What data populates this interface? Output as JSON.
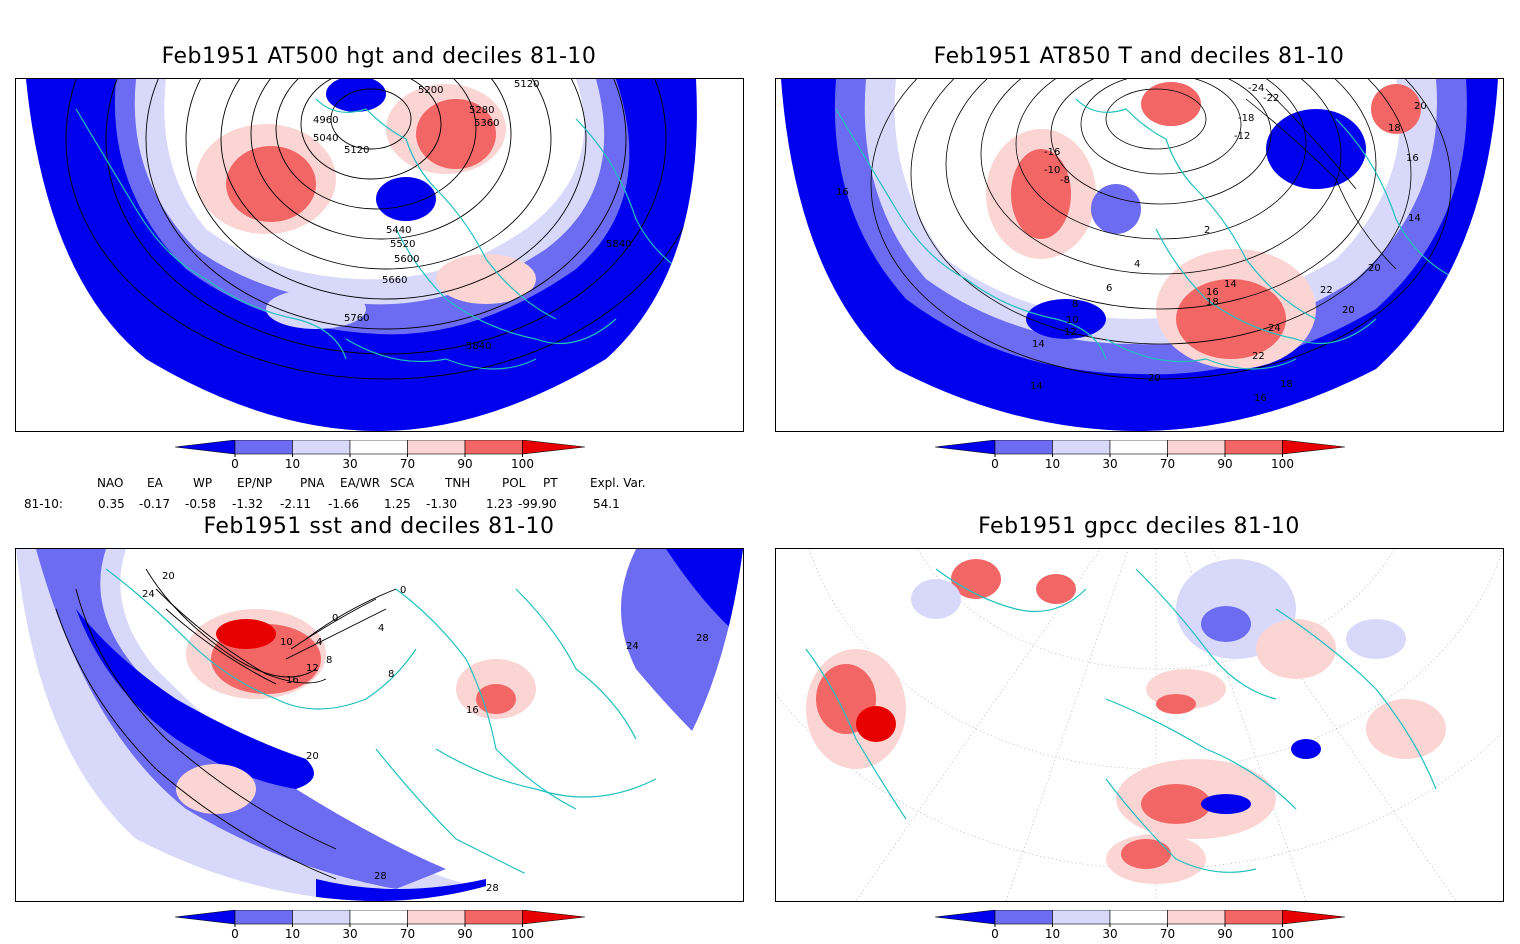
{
  "panels": [
    {
      "title": "Feb1951  AT500  hgt  and  deciles  81-10",
      "contour_labels": [
        "5120",
        "5200",
        "4960",
        "5280",
        "5040",
        "5360",
        "5120",
        "5440",
        "5520",
        "5600",
        "5660",
        "5840",
        "5760",
        "5840"
      ]
    },
    {
      "title": "Feb1951  AT850  T  and  deciles  81-10",
      "contour_labels": [
        "-24",
        "-22",
        "-18",
        "-16",
        "-12",
        "-10",
        "-8",
        "20",
        "18",
        "16",
        "16",
        "14",
        "2",
        "4",
        "6",
        "8",
        "10",
        "12",
        "14",
        "14",
        "16",
        "18",
        "14",
        "22",
        "20",
        "20",
        "24",
        "22",
        "20",
        "18",
        "16"
      ]
    },
    {
      "title": "Feb1951  sst  and  deciles  81-10",
      "contour_labels": [
        "24",
        "20",
        "0",
        "0",
        "4",
        "10",
        "4",
        "8",
        "12",
        "16",
        "8",
        "20",
        "16",
        "24",
        "28",
        "28",
        "28"
      ]
    },
    {
      "title": "Feb1951  gpcc  deciles  81-10",
      "contour_labels": []
    }
  ],
  "colorbar": {
    "ticks": [
      "0",
      "10",
      "30",
      "70",
      "90",
      "100"
    ],
    "colors": [
      "#0000ee",
      "#6c6cf2",
      "#d8d8fa",
      "#ffffff",
      "#fbd4d4",
      "#f26666",
      "#e80000"
    ]
  },
  "indices": {
    "headers": [
      "NAO",
      "EA",
      "WP",
      "EP/NP",
      "PNA",
      "EA/WR",
      "SCA",
      "TNH",
      "POL",
      "PT",
      "Expl. Var."
    ],
    "row_label": "81-10:",
    "values": [
      "0.35",
      "-0.17",
      "-0.58",
      "-1.32",
      "-2.11",
      "-1.66",
      "1.25",
      "-1.30",
      "1.23",
      "-99.90",
      "54.1"
    ]
  }
}
